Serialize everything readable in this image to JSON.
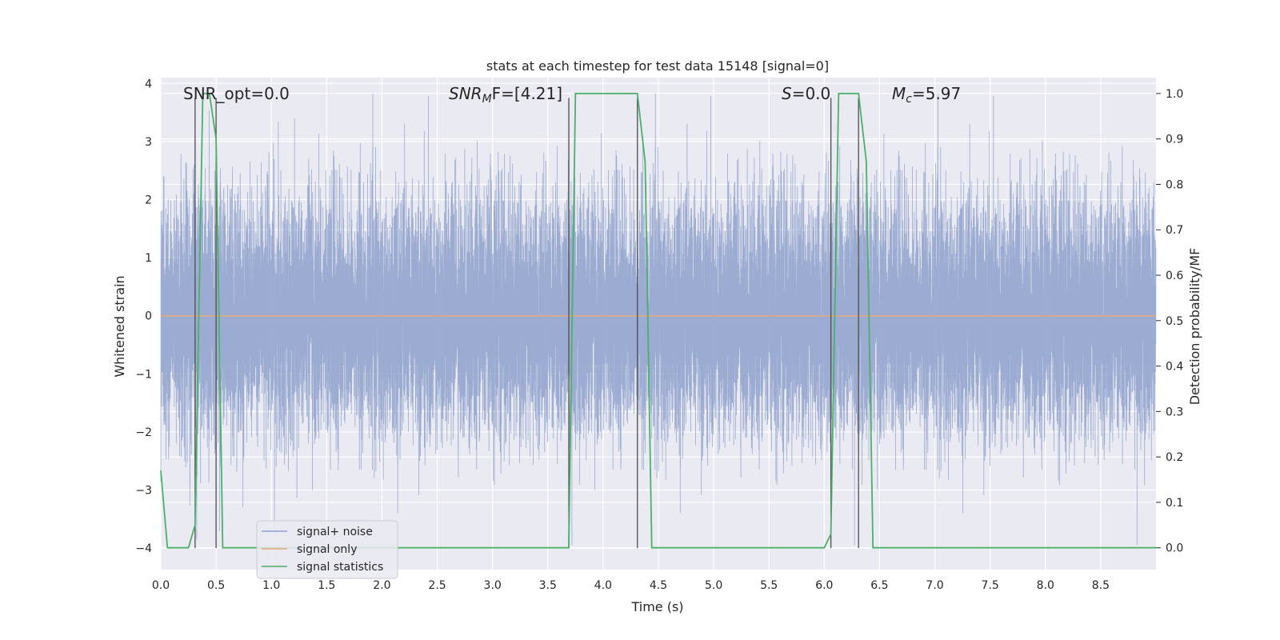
{
  "chart_data": {
    "type": "line",
    "title": "stats at each timestep for test data 15148 [signal=0]",
    "xlabel": "Time (s)",
    "ylabel": "Whitened strain",
    "y2label": "Detection probability/MF",
    "xlim": [
      0.0,
      9.0
    ],
    "ylim": [
      -4.37,
      4.1
    ],
    "y2lim": [
      -0.048,
      1.035
    ],
    "xticks": [
      "0.0",
      "0.5",
      "1.0",
      "1.5",
      "2.0",
      "2.5",
      "3.0",
      "3.5",
      "4.0",
      "4.5",
      "5.0",
      "5.5",
      "6.0",
      "6.5",
      "7.0",
      "7.5",
      "8.0",
      "8.5"
    ],
    "xtick_values": [
      0.0,
      0.5,
      1.0,
      1.5,
      2.0,
      2.5,
      3.0,
      3.5,
      4.0,
      4.5,
      5.0,
      5.5,
      6.0,
      6.5,
      7.0,
      7.5,
      8.0,
      8.5
    ],
    "yticks": [
      "−4",
      "−3",
      "−2",
      "−1",
      "0",
      "1",
      "2",
      "3",
      "4"
    ],
    "ytick_values": [
      -4,
      -3,
      -2,
      -1,
      0,
      1,
      2,
      3,
      4
    ],
    "y2ticks": [
      "0.0",
      "0.1",
      "0.2",
      "0.3",
      "0.4",
      "0.5",
      "0.6",
      "0.7",
      "0.8",
      "0.9",
      "1.0"
    ],
    "y2tick_values": [
      0.0,
      0.1,
      0.2,
      0.3,
      0.4,
      0.5,
      0.6,
      0.7,
      0.8,
      0.9,
      1.0
    ],
    "grid": true,
    "legend_position": "lower-left",
    "legend": [
      "signal+ noise",
      "signal only",
      "signal statistics"
    ],
    "annotations": {
      "snr_opt": "SNR_opt=0.0",
      "snr_mf_prefix": "SNR",
      "snr_mf_sub": "M",
      "snr_mf_suffix": "F=[4.21]",
      "s_prefix": "S",
      "s_suffix": "=0.0",
      "mc_prefix": "M",
      "mc_sub": "c",
      "mc_suffix": "=5.97"
    },
    "series": [
      {
        "name": "signal+ noise",
        "axis": "left",
        "color": "#8da0cb",
        "sample_rate_hz": 2048,
        "description_stats": {
          "mean": 0.0,
          "std": 1.0
        }
      },
      {
        "name": "signal only",
        "axis": "left",
        "color": "#e8a87c",
        "x": [
          0.0,
          9.0
        ],
        "y": [
          0.0,
          0.0
        ]
      },
      {
        "name": "signal statistics",
        "axis": "right",
        "color": "#4caf6a",
        "x": [
          0.0,
          0.06,
          0.13,
          0.25,
          0.31,
          0.38,
          0.44,
          0.5,
          0.56,
          0.63,
          3.69,
          3.75,
          3.81,
          4.31,
          4.38,
          4.44,
          4.5,
          6.0,
          6.06,
          6.13,
          6.31,
          6.38,
          6.44,
          6.5,
          9.0
        ],
        "y": [
          0.17,
          0.0,
          0.0,
          0.0,
          0.05,
          1.0,
          1.0,
          0.9,
          0.0,
          0.0,
          0.0,
          1.0,
          1.0,
          1.0,
          0.85,
          0.0,
          0.0,
          0.0,
          0.03,
          1.0,
          1.0,
          0.85,
          0.0,
          0.0,
          0.0
        ]
      }
    ],
    "vlines": [
      0.31,
      0.5,
      3.69,
      4.31,
      6.06,
      6.31
    ]
  }
}
